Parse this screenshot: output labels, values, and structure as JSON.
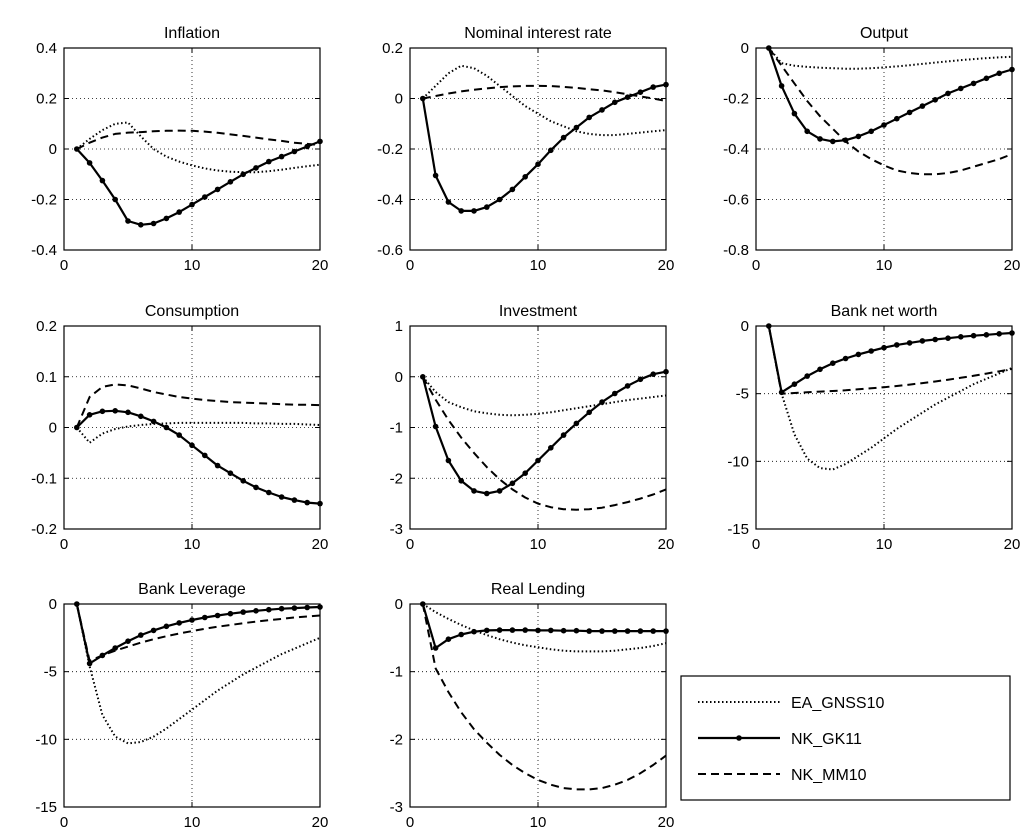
{
  "legend": {
    "entries": [
      {
        "label": "EA_GNSS10",
        "style": "dotted",
        "markers": false
      },
      {
        "label": "NK_GK11",
        "style": "solid",
        "markers": true
      },
      {
        "label": "NK_MM10",
        "style": "dashed",
        "markers": false
      }
    ]
  },
  "chart_data": [
    {
      "type": "line",
      "title": "Inflation",
      "xlim": [
        0,
        20
      ],
      "ylim": [
        -0.4,
        0.4
      ],
      "xticks": [
        "0",
        "10",
        "20"
      ],
      "yticks": [
        "-0.4",
        "-0.2",
        "0",
        "0.2",
        "0.4"
      ],
      "yticks_values": [
        -0.4,
        -0.2,
        0,
        0.2,
        0.4
      ],
      "grid": true,
      "x": [
        1,
        2,
        3,
        4,
        5,
        6,
        7,
        8,
        9,
        10,
        11,
        12,
        13,
        14,
        15,
        16,
        17,
        18,
        19,
        20
      ],
      "series": [
        {
          "name": "EA_GNSS10",
          "values": [
            0,
            0.04,
            0.075,
            0.1,
            0.105,
            0.05,
            0,
            -0.03,
            -0.05,
            -0.065,
            -0.077,
            -0.085,
            -0.09,
            -0.092,
            -0.092,
            -0.088,
            -0.082,
            -0.075,
            -0.068,
            -0.062
          ]
        },
        {
          "name": "NK_GK11",
          "values": [
            0,
            -0.055,
            -0.125,
            -0.2,
            -0.285,
            -0.3,
            -0.295,
            -0.275,
            -0.25,
            -0.22,
            -0.19,
            -0.16,
            -0.13,
            -0.1,
            -0.075,
            -0.05,
            -0.03,
            -0.01,
            0.01,
            0.03
          ]
        },
        {
          "name": "NK_MM10",
          "values": [
            0,
            0.025,
            0.045,
            0.06,
            0.065,
            0.067,
            0.07,
            0.072,
            0.073,
            0.072,
            0.069,
            0.064,
            0.058,
            0.052,
            0.045,
            0.038,
            0.032,
            0.025,
            0.02,
            0.015
          ]
        }
      ]
    },
    {
      "type": "line",
      "title": "Nominal interest rate",
      "xlim": [
        0,
        20
      ],
      "ylim": [
        -0.6,
        0.2
      ],
      "xticks": [
        "0",
        "10",
        "20"
      ],
      "yticks": [
        "-0.6",
        "-0.4",
        "-0.2",
        "0",
        "0.2"
      ],
      "yticks_values": [
        -0.6,
        -0.4,
        -0.2,
        0,
        0.2
      ],
      "grid": true,
      "x": [
        1,
        2,
        3,
        4,
        5,
        6,
        7,
        8,
        9,
        10,
        11,
        12,
        13,
        14,
        15,
        16,
        17,
        18,
        19,
        20
      ],
      "series": [
        {
          "name": "EA_GNSS10",
          "values": [
            0,
            0.05,
            0.1,
            0.13,
            0.12,
            0.09,
            0.05,
            0.01,
            -0.03,
            -0.06,
            -0.09,
            -0.11,
            -0.13,
            -0.14,
            -0.145,
            -0.145,
            -0.14,
            -0.135,
            -0.13,
            -0.125
          ]
        },
        {
          "name": "NK_GK11",
          "values": [
            0,
            -0.305,
            -0.41,
            -0.445,
            -0.445,
            -0.43,
            -0.4,
            -0.36,
            -0.31,
            -0.26,
            -0.205,
            -0.155,
            -0.115,
            -0.075,
            -0.045,
            -0.015,
            0.005,
            0.025,
            0.045,
            0.055
          ]
        },
        {
          "name": "NK_MM10",
          "values": [
            0,
            0.01,
            0.02,
            0.028,
            0.035,
            0.04,
            0.045,
            0.048,
            0.05,
            0.05,
            0.049,
            0.046,
            0.042,
            0.037,
            0.032,
            0.025,
            0.017,
            0.008,
            0,
            -0.01
          ]
        }
      ]
    },
    {
      "type": "line",
      "title": "Output",
      "xlim": [
        0,
        20
      ],
      "ylim": [
        -0.8,
        0
      ],
      "xticks": [
        "0",
        "10",
        "20"
      ],
      "yticks": [
        "-0.8",
        "-0.6",
        "-0.4",
        "-0.2",
        "0"
      ],
      "yticks_values": [
        -0.8,
        -0.6,
        -0.4,
        -0.2,
        0
      ],
      "grid": true,
      "x": [
        1,
        2,
        3,
        4,
        5,
        6,
        7,
        8,
        9,
        10,
        11,
        12,
        13,
        14,
        15,
        16,
        17,
        18,
        19,
        20
      ],
      "series": [
        {
          "name": "EA_GNSS10",
          "values": [
            0,
            -0.06,
            -0.07,
            -0.075,
            -0.078,
            -0.08,
            -0.082,
            -0.082,
            -0.08,
            -0.077,
            -0.073,
            -0.068,
            -0.063,
            -0.058,
            -0.053,
            -0.048,
            -0.044,
            -0.04,
            -0.037,
            -0.035
          ]
        },
        {
          "name": "NK_GK11",
          "values": [
            0,
            -0.15,
            -0.26,
            -0.33,
            -0.36,
            -0.37,
            -0.365,
            -0.35,
            -0.33,
            -0.305,
            -0.28,
            -0.255,
            -0.23,
            -0.205,
            -0.18,
            -0.16,
            -0.14,
            -0.12,
            -0.1,
            -0.085
          ]
        },
        {
          "name": "NK_MM10",
          "values": [
            0,
            -0.07,
            -0.14,
            -0.21,
            -0.27,
            -0.32,
            -0.37,
            -0.41,
            -0.44,
            -0.465,
            -0.485,
            -0.495,
            -0.5,
            -0.5,
            -0.495,
            -0.485,
            -0.47,
            -0.455,
            -0.44,
            -0.42
          ]
        }
      ]
    },
    {
      "type": "line",
      "title": "Consumption",
      "xlim": [
        0,
        20
      ],
      "ylim": [
        -0.2,
        0.2
      ],
      "xticks": [
        "0",
        "10",
        "20"
      ],
      "yticks": [
        "-0.2",
        "-0.1",
        "0",
        "0.1",
        "0.2"
      ],
      "yticks_values": [
        -0.2,
        -0.1,
        0,
        0.1,
        0.2
      ],
      "grid": true,
      "x": [
        1,
        2,
        3,
        4,
        5,
        6,
        7,
        8,
        9,
        10,
        11,
        12,
        13,
        14,
        15,
        16,
        17,
        18,
        19,
        20
      ],
      "series": [
        {
          "name": "EA_GNSS10",
          "values": [
            0,
            -0.03,
            -0.012,
            -0.003,
            0.002,
            0.005,
            0.007,
            0.008,
            0.009,
            0.009,
            0.009,
            0.009,
            0.009,
            0.009,
            0.008,
            0.008,
            0.007,
            0.007,
            0.006,
            0.005
          ]
        },
        {
          "name": "NK_GK11",
          "values": [
            0,
            0.025,
            0.032,
            0.033,
            0.03,
            0.022,
            0.012,
            0,
            -0.015,
            -0.035,
            -0.055,
            -0.075,
            -0.09,
            -0.105,
            -0.118,
            -0.128,
            -0.137,
            -0.143,
            -0.148,
            -0.15
          ]
        },
        {
          "name": "NK_MM10",
          "values": [
            0,
            0.06,
            0.08,
            0.085,
            0.083,
            0.077,
            0.07,
            0.065,
            0.06,
            0.057,
            0.054,
            0.052,
            0.05,
            0.049,
            0.048,
            0.047,
            0.046,
            0.045,
            0.045,
            0.044
          ]
        }
      ]
    },
    {
      "type": "line",
      "title": "Investment",
      "xlim": [
        0,
        20
      ],
      "ylim": [
        -3,
        1
      ],
      "xticks": [
        "0",
        "10",
        "20"
      ],
      "yticks": [
        "-3",
        "-2",
        "-1",
        "0",
        "1"
      ],
      "yticks_values": [
        -3,
        -2,
        -1,
        0,
        1
      ],
      "grid": true,
      "x": [
        1,
        2,
        3,
        4,
        5,
        6,
        7,
        8,
        9,
        10,
        11,
        12,
        13,
        14,
        15,
        16,
        17,
        18,
        19,
        20
      ],
      "series": [
        {
          "name": "EA_GNSS10",
          "values": [
            0,
            -0.3,
            -0.5,
            -0.6,
            -0.68,
            -0.72,
            -0.75,
            -0.76,
            -0.75,
            -0.73,
            -0.7,
            -0.66,
            -0.62,
            -0.58,
            -0.54,
            -0.5,
            -0.46,
            -0.43,
            -0.4,
            -0.37
          ]
        },
        {
          "name": "NK_GK11",
          "values": [
            0,
            -0.98,
            -1.65,
            -2.05,
            -2.25,
            -2.3,
            -2.25,
            -2.1,
            -1.9,
            -1.65,
            -1.4,
            -1.15,
            -0.92,
            -0.7,
            -0.5,
            -0.33,
            -0.18,
            -0.05,
            0.05,
            0.1
          ]
        },
        {
          "name": "NK_MM10",
          "values": [
            0,
            -0.45,
            -0.85,
            -1.2,
            -1.5,
            -1.78,
            -2.02,
            -2.22,
            -2.38,
            -2.5,
            -2.57,
            -2.61,
            -2.62,
            -2.61,
            -2.58,
            -2.53,
            -2.47,
            -2.4,
            -2.32,
            -2.22
          ]
        }
      ]
    },
    {
      "type": "line",
      "title": "Bank net worth",
      "xlim": [
        0,
        20
      ],
      "ylim": [
        -15,
        0
      ],
      "xticks": [
        "0",
        "10",
        "20"
      ],
      "yticks": [
        "-15",
        "-10",
        "-5",
        "0"
      ],
      "yticks_values": [
        -15,
        -10,
        -5,
        0
      ],
      "grid": true,
      "x": [
        1,
        2,
        3,
        4,
        5,
        6,
        7,
        8,
        9,
        10,
        11,
        12,
        13,
        14,
        15,
        16,
        17,
        18,
        19,
        20
      ],
      "series": [
        {
          "name": "EA_GNSS10",
          "values": [
            0,
            -5,
            -8,
            -9.8,
            -10.5,
            -10.6,
            -10.2,
            -9.6,
            -9,
            -8.3,
            -7.6,
            -7,
            -6.4,
            -5.8,
            -5.3,
            -4.8,
            -4.3,
            -3.9,
            -3.5,
            -3.1
          ]
        },
        {
          "name": "NK_GK11",
          "values": [
            0,
            -4.9,
            -4.3,
            -3.7,
            -3.2,
            -2.75,
            -2.4,
            -2.1,
            -1.85,
            -1.6,
            -1.4,
            -1.25,
            -1.1,
            -1,
            -0.9,
            -0.8,
            -0.72,
            -0.65,
            -0.58,
            -0.52
          ]
        },
        {
          "name": "NK_MM10",
          "values": [
            0,
            -5,
            -4.95,
            -4.9,
            -4.85,
            -4.8,
            -4.75,
            -4.68,
            -4.6,
            -4.52,
            -4.43,
            -4.33,
            -4.22,
            -4.1,
            -3.97,
            -3.83,
            -3.68,
            -3.52,
            -3.35,
            -3.18
          ]
        }
      ]
    },
    {
      "type": "line",
      "title": "Bank Leverage",
      "xlim": [
        0,
        20
      ],
      "ylim": [
        -15,
        0
      ],
      "xticks": [
        "0",
        "10",
        "20"
      ],
      "yticks": [
        "-15",
        "-10",
        "-5",
        "0"
      ],
      "yticks_values": [
        -15,
        -10,
        -5,
        0
      ],
      "grid": true,
      "x": [
        1,
        2,
        3,
        4,
        5,
        6,
        7,
        8,
        9,
        10,
        11,
        12,
        13,
        14,
        15,
        16,
        17,
        18,
        19,
        20
      ],
      "series": [
        {
          "name": "EA_GNSS10",
          "values": [
            0,
            -4.6,
            -8.2,
            -9.8,
            -10.3,
            -10.2,
            -9.8,
            -9.2,
            -8.5,
            -7.8,
            -7.1,
            -6.4,
            -5.8,
            -5.2,
            -4.7,
            -4.2,
            -3.7,
            -3.3,
            -2.9,
            -2.5
          ]
        },
        {
          "name": "NK_GK11",
          "values": [
            0,
            -4.4,
            -3.8,
            -3.25,
            -2.75,
            -2.3,
            -1.95,
            -1.65,
            -1.4,
            -1.18,
            -1,
            -0.85,
            -0.72,
            -0.6,
            -0.5,
            -0.42,
            -0.35,
            -0.3,
            -0.26,
            -0.22
          ]
        },
        {
          "name": "NK_MM10",
          "values": [
            0,
            -4.2,
            -3.8,
            -3.45,
            -3.15,
            -2.85,
            -2.6,
            -2.38,
            -2.18,
            -2,
            -1.83,
            -1.68,
            -1.55,
            -1.42,
            -1.3,
            -1.2,
            -1.1,
            -1,
            -0.92,
            -0.85
          ]
        }
      ]
    },
    {
      "type": "line",
      "title": "Real Lending",
      "xlim": [
        0,
        20
      ],
      "ylim": [
        -3,
        0
      ],
      "xticks": [
        "0",
        "10",
        "20"
      ],
      "yticks": [
        "-3",
        "-2",
        "-1",
        "0"
      ],
      "yticks_values": [
        -3,
        -2,
        -1,
        0
      ],
      "grid": true,
      "x": [
        1,
        2,
        3,
        4,
        5,
        6,
        7,
        8,
        9,
        10,
        11,
        12,
        13,
        14,
        15,
        16,
        17,
        18,
        19,
        20
      ],
      "series": [
        {
          "name": "EA_GNSS10",
          "values": [
            0,
            -0.12,
            -0.22,
            -0.31,
            -0.39,
            -0.46,
            -0.52,
            -0.57,
            -0.61,
            -0.64,
            -0.67,
            -0.69,
            -0.7,
            -0.7,
            -0.7,
            -0.69,
            -0.67,
            -0.65,
            -0.62,
            -0.58
          ]
        },
        {
          "name": "NK_GK11",
          "values": [
            0,
            -0.65,
            -0.52,
            -0.45,
            -0.41,
            -0.39,
            -0.385,
            -0.385,
            -0.385,
            -0.39,
            -0.39,
            -0.395,
            -0.395,
            -0.4,
            -0.4,
            -0.4,
            -0.4,
            -0.4,
            -0.4,
            -0.4
          ]
        },
        {
          "name": "NK_MM10",
          "values": [
            0,
            -0.95,
            -1.3,
            -1.6,
            -1.85,
            -2.05,
            -2.23,
            -2.38,
            -2.5,
            -2.6,
            -2.67,
            -2.72,
            -2.74,
            -2.74,
            -2.72,
            -2.67,
            -2.6,
            -2.5,
            -2.38,
            -2.24
          ]
        }
      ]
    }
  ]
}
